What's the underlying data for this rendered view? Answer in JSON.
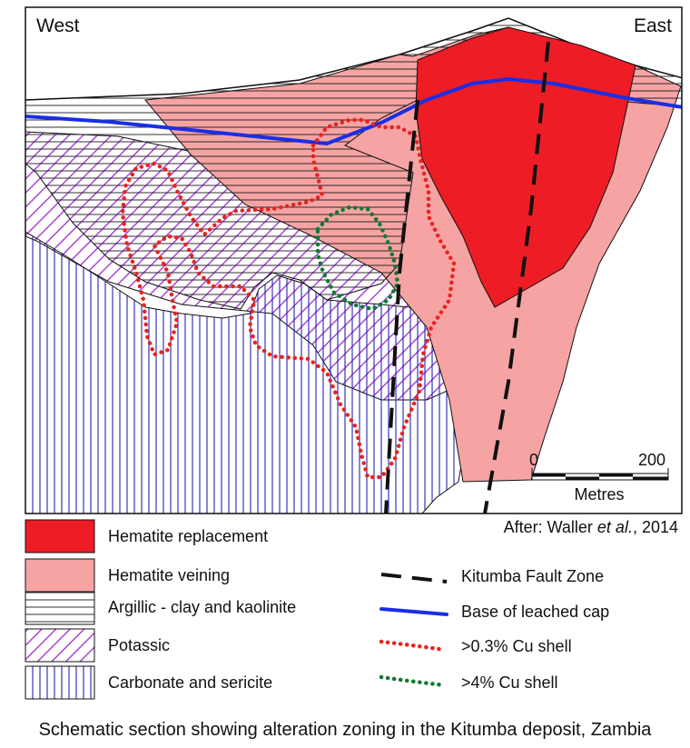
{
  "orientation": {
    "west": "West",
    "east": "East"
  },
  "scale_bar": {
    "start": "0",
    "end": "200",
    "unit": "Metres"
  },
  "attribution": {
    "prefix": "After: Waller ",
    "italic": "et al.",
    "suffix": ", 2014"
  },
  "legend": {
    "hematite_replacement": "Hematite replacement",
    "hematite_veining": "Hematite veining",
    "argillic": "Argillic - clay and kaolinite",
    "potassic": "Potassic",
    "carbonate": "Carbonate and sericite",
    "fault": "Kitumba Fault Zone",
    "leached_cap": "Base of leached cap",
    "cu_03": ">0.3% Cu shell",
    "cu_4": ">4% Cu shell"
  },
  "caption": "Schematic section showing alteration zoning in the Kitumba deposit, Zambia",
  "colors": {
    "hematite_replacement": "#ee1c25",
    "hematite_veining": "#f6a3a3",
    "potassic_hatch": "#9b27d3",
    "carbonate_hatch": "#2424b0",
    "leached_cap_line": "#1a2ee6",
    "cu_03_dots": "#e8231f",
    "cu_4_dots": "#0f7a35"
  }
}
